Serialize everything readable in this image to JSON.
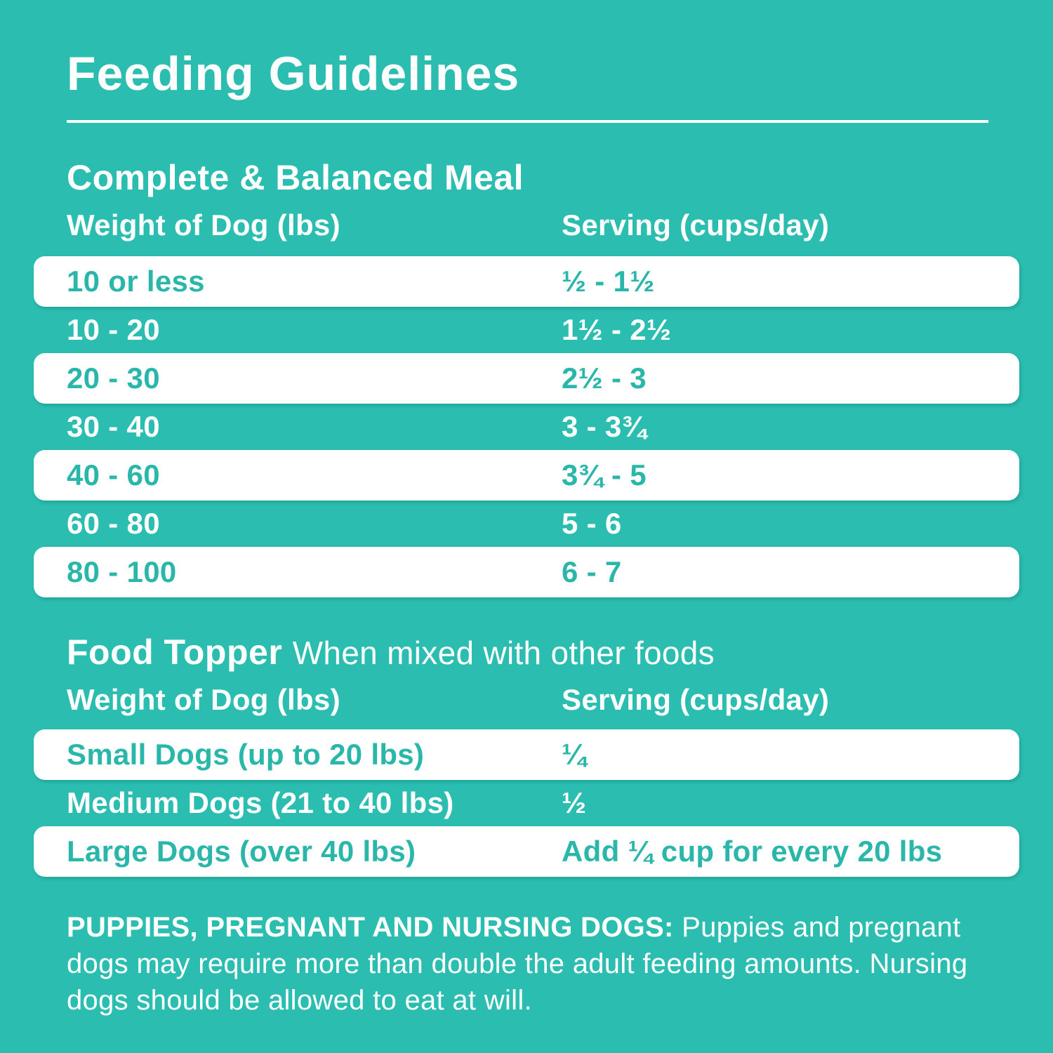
{
  "page": {
    "title": "Feeding Guidelines"
  },
  "colors": {
    "background_teal": "#2abdb0",
    "row_background": "#ffffff",
    "text_on_teal": "#ffffff",
    "text_on_white_row": "#2ab7aa"
  },
  "meal_table": {
    "heading": "Complete & Balanced Meal",
    "columns": [
      "Weight of Dog (lbs)",
      "Serving (cups/day)"
    ],
    "rows": [
      {
        "weight": "10 or less",
        "serving": "½ - 1½"
      },
      {
        "weight": "10 - 20",
        "serving": "1½ - 2½"
      },
      {
        "weight": "20 - 30",
        "serving": "2½ - 3"
      },
      {
        "weight": "30 - 40",
        "serving": "3 - 3¾"
      },
      {
        "weight": "40 - 60",
        "serving": "3¾ - 5"
      },
      {
        "weight": "60 - 80",
        "serving": "5 - 6"
      },
      {
        "weight": "80 - 100",
        "serving": "6 - 7"
      }
    ]
  },
  "topper_table": {
    "heading": "Food Topper",
    "subheading": "When mixed with other foods",
    "columns": [
      "Weight of Dog (lbs)",
      "Serving (cups/day)"
    ],
    "rows": [
      {
        "weight": "Small Dogs (up to 20 lbs)",
        "serving": "¼"
      },
      {
        "weight": "Medium Dogs (21 to 40 lbs)",
        "serving": "½"
      },
      {
        "weight": "Large Dogs (over 40 lbs)",
        "serving": "Add ¼ cup for every 20 lbs"
      }
    ]
  },
  "note": {
    "bold": "PUPPIES, PREGNANT AND NURSING DOGS:",
    "text": " Puppies and pregnant dogs may require more than double the adult feeding amounts. Nursing dogs should be allowed to eat at will."
  }
}
